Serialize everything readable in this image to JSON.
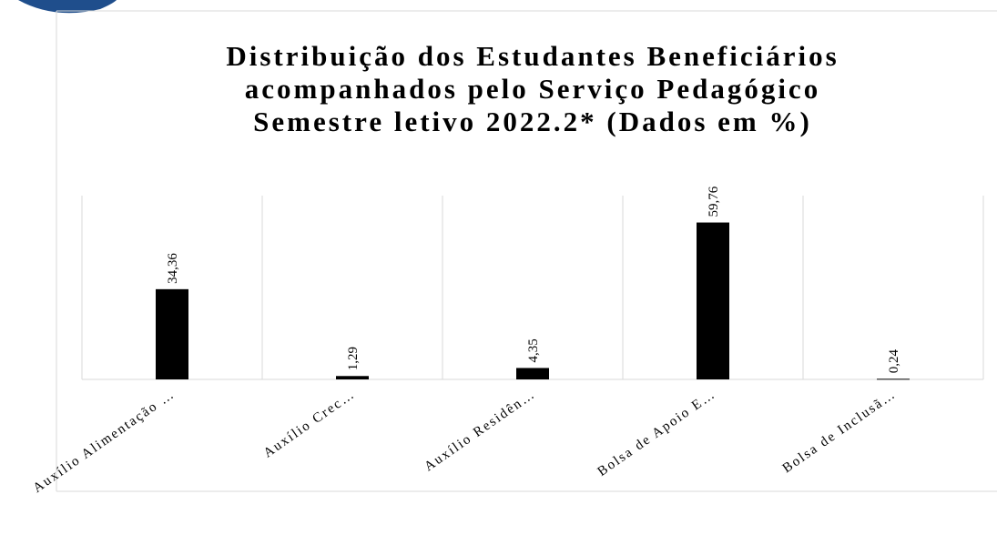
{
  "chart_data": {
    "type": "bar",
    "title": [
      "Distribuição dos Estudantes Beneficiários",
      "acompanhados pelo Serviço Pedagógico",
      "Semestre letivo 2022.2*  (Dados em %)"
    ],
    "categories": [
      "Auxílio Alimentação …",
      "Auxílio Crec…",
      "Auxílio Residên…",
      "Bolsa de Apoio E…",
      "Bolsa de Inclusã…"
    ],
    "values": [
      34.36,
      1.29,
      4.35,
      59.76,
      0.24
    ],
    "value_labels": [
      "34,36",
      "1,29",
      "4,35",
      "59,76",
      "0,24"
    ],
    "color": "#000000",
    "ylim": [
      0,
      70
    ]
  }
}
